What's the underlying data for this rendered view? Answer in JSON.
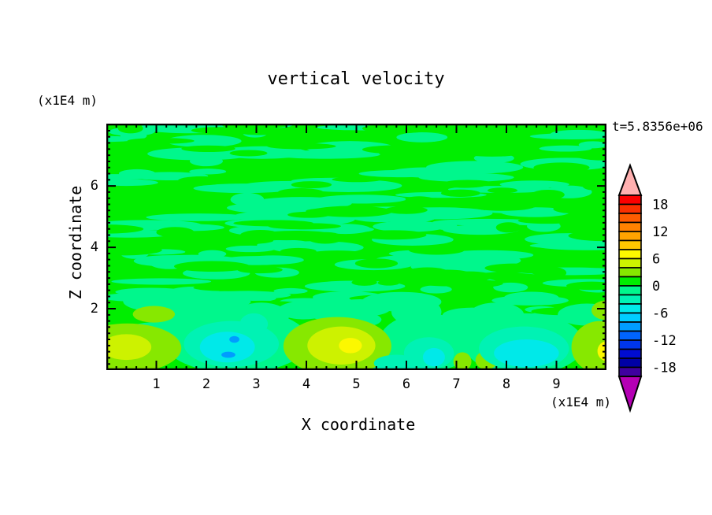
{
  "window": {
    "background": "#FFFFFF"
  },
  "chart_data": {
    "type": "contour",
    "title": "vertical velocity",
    "time_label": "t=5.8356e+06",
    "xlabel": "X coordinate",
    "ylabel": "Z coordinate",
    "x_unit_label": "(x1E4 m)",
    "y_unit_label": "(x1E4 m)",
    "xlim": [
      0,
      10
    ],
    "ylim": [
      0,
      8.03
    ],
    "x_major_ticks": [
      1,
      2,
      3,
      4,
      5,
      6,
      7,
      8,
      9
    ],
    "y_major_ticks": [
      2,
      4,
      6
    ],
    "minor_tick_step": 0.2,
    "grid": false,
    "legend_position": "right-colorbar",
    "levels": {
      "step": 2,
      "range": [
        -20,
        20
      ]
    },
    "colorbar": {
      "labels": [
        "18",
        "12",
        "6",
        "0",
        "-6",
        "-12",
        "-18"
      ],
      "label_level_values": [
        18,
        12,
        6,
        0,
        -6,
        -12,
        -18
      ],
      "segment_colors_top_to_bottom": [
        "#FB0000",
        "#FB3000",
        "#FF5C00",
        "#FF8200",
        "#FFA300",
        "#FFC600",
        "#FCF800",
        "#CDF200",
        "#87E800",
        "#00EE00",
        "#00F78C",
        "#00F2B4",
        "#00E9E9",
        "#00CDFF",
        "#009CFF",
        "#0064FF",
        "#0036EC",
        "#000CD2",
        "#0000A6",
        "#3F00A0"
      ],
      "over_color": "#FFB0B0",
      "under_color": "#B400B4"
    },
    "background_color": "#00EE00",
    "speckle_color": "#00F78C",
    "texture": {
      "seed": 987654321,
      "streaks": 125,
      "holes": 78,
      "patches": 16,
      "zone_top_z": 8.0,
      "zone_bottom_z": 1.55
    },
    "features": [
      {
        "name": "downdraft-halo-1",
        "x": 2.6,
        "z": 0.95,
        "rx": 1.45,
        "rz": 1.05,
        "color": "#00F78C"
      },
      {
        "name": "downdraft-arm-1",
        "x": 3.1,
        "z": 1.75,
        "rx": 0.55,
        "rz": 0.45,
        "color": "#00F78C"
      },
      {
        "name": "springgreen-patch-a",
        "x": 5.65,
        "z": 0.4,
        "rx": 0.6,
        "rz": 0.45,
        "color": "#00F78C"
      },
      {
        "name": "downdraft-halo-2",
        "x": 6.4,
        "z": 0.9,
        "rx": 0.95,
        "rz": 0.95,
        "color": "#00F78C"
      },
      {
        "name": "downdraft-arm-2",
        "x": 6.2,
        "z": 1.9,
        "rx": 0.5,
        "rz": 0.45,
        "color": "#00F78C"
      },
      {
        "name": "downdraft-halo-3",
        "x": 8.35,
        "z": 0.85,
        "rx": 1.2,
        "rz": 1.0,
        "color": "#00F78C"
      },
      {
        "name": "downdraft-arm-3",
        "x": 7.8,
        "z": 1.8,
        "rx": 0.55,
        "rz": 0.4,
        "color": "#00F78C"
      },
      {
        "name": "springgreen-patch-b",
        "x": 1.7,
        "z": 1.45,
        "rx": 0.5,
        "rz": 0.35,
        "color": "#00F78C"
      },
      {
        "name": "updraft-left-outer",
        "x": 0.42,
        "z": 0.72,
        "rx": 1.08,
        "rz": 0.8,
        "color": "#87E800"
      },
      {
        "name": "updraft-main-outer",
        "x": 4.62,
        "z": 0.78,
        "rx": 1.08,
        "rz": 0.95,
        "color": "#87E800"
      },
      {
        "name": "updraft-right-outer",
        "x": 9.88,
        "z": 0.75,
        "rx": 0.58,
        "rz": 0.85,
        "color": "#87E800"
      },
      {
        "name": "updraft-right-upper",
        "x": 10.0,
        "z": 1.95,
        "rx": 0.3,
        "rz": 0.32,
        "color": "#87E800"
      },
      {
        "name": "updraft-dot-a",
        "x": 7.12,
        "z": 0.28,
        "rx": 0.18,
        "rz": 0.3,
        "color": "#87E800"
      },
      {
        "name": "updraft-dot-b",
        "x": 7.6,
        "z": 0.32,
        "rx": 0.22,
        "rz": 0.3,
        "color": "#87E800"
      },
      {
        "name": "updraft-streak",
        "x": 0.95,
        "z": 1.82,
        "rx": 0.42,
        "rz": 0.27,
        "color": "#87E800"
      },
      {
        "name": "updraft-left-inner",
        "x": 0.4,
        "z": 0.75,
        "rx": 0.5,
        "rz": 0.42,
        "color": "#CDF200"
      },
      {
        "name": "updraft-main-mid",
        "x": 4.7,
        "z": 0.8,
        "rx": 0.68,
        "rz": 0.62,
        "color": "#CDF200"
      },
      {
        "name": "updraft-main-core",
        "x": 4.88,
        "z": 0.8,
        "rx": 0.23,
        "rz": 0.25,
        "color": "#FCF800"
      },
      {
        "name": "updraft-right-core",
        "x": 10.02,
        "z": 0.62,
        "rx": 0.2,
        "rz": 0.33,
        "color": "#FCF800"
      },
      {
        "name": "downdraft-mid-1",
        "x": 2.5,
        "z": 0.85,
        "rx": 0.95,
        "rz": 0.75,
        "color": "#00F2B4"
      },
      {
        "name": "downdraft-mid-3",
        "x": 8.35,
        "z": 0.7,
        "rx": 0.9,
        "rz": 0.72,
        "color": "#00F2B4"
      },
      {
        "name": "downdraft-mid-2",
        "x": 6.45,
        "z": 0.55,
        "rx": 0.5,
        "rz": 0.52,
        "color": "#00F2B4"
      },
      {
        "name": "downdraft-shelf",
        "x": 5.8,
        "z": 0.22,
        "rx": 0.45,
        "rz": 0.28,
        "color": "#00F2B4"
      },
      {
        "name": "downdraft-arm-tip",
        "x": 2.95,
        "z": 1.5,
        "rx": 0.28,
        "rz": 0.35,
        "color": "#00F2B4"
      },
      {
        "name": "downdraft-core-1",
        "x": 2.42,
        "z": 0.75,
        "rx": 0.55,
        "rz": 0.5,
        "color": "#00E9E9"
      },
      {
        "name": "downdraft-core-3",
        "x": 8.4,
        "z": 0.55,
        "rx": 0.65,
        "rz": 0.45,
        "color": "#00E9E9"
      },
      {
        "name": "downdraft-core-2",
        "x": 6.55,
        "z": 0.42,
        "rx": 0.22,
        "rz": 0.3,
        "color": "#00E9E9"
      },
      {
        "name": "downdraft-min-dot-1",
        "x": 2.56,
        "z": 1.0,
        "rx": 0.1,
        "rz": 0.11,
        "color": "#009CFF"
      },
      {
        "name": "downdraft-min-dot-2",
        "x": 2.44,
        "z": 0.5,
        "rx": 0.14,
        "rz": 0.1,
        "color": "#009CFF"
      }
    ]
  }
}
